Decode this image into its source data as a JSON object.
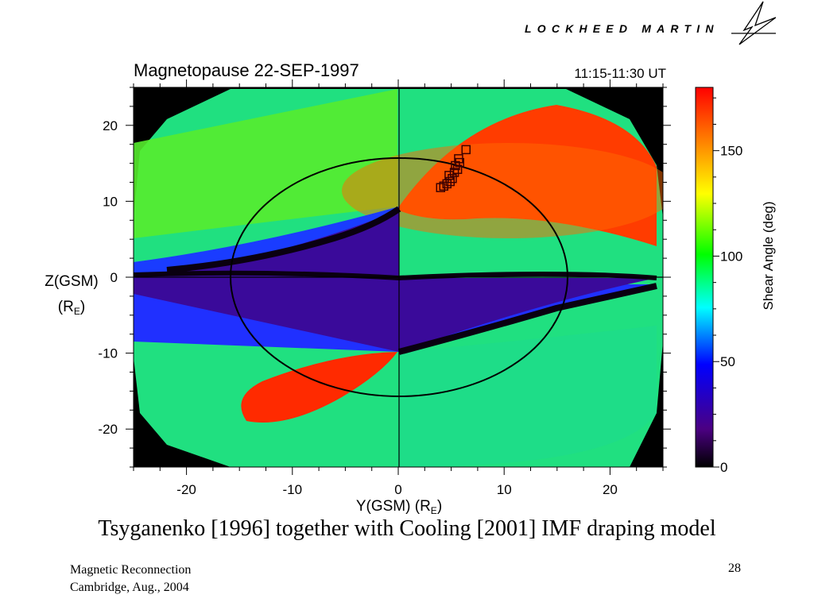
{
  "slide": {
    "logo_text": "LOCKHEED MARTIN",
    "caption": "Tsyganenko [1996] together with Cooling [2001] IMF draping model",
    "footer_left_line1": "Magnetic Reconnection",
    "footer_left_line2": "Cambridge, Aug., 2004",
    "page_number": "28"
  },
  "chart_data": {
    "type": "heatmap",
    "title": "Magnetopause 22-SEP-1997",
    "subtitle": "11:15-11:30 UT",
    "xlabel": "Y(GSM) (R",
    "xlabel_sub": "E",
    "xlabel_suffix": ")",
    "ylabel_line1": "Z(GSM)",
    "ylabel_line2": "(R",
    "ylabel_sub": "E",
    "ylabel_suffix": ")",
    "xlim": [
      -25,
      25
    ],
    "ylim": [
      -25,
      25
    ],
    "xticks": [
      -20,
      -10,
      0,
      10,
      20
    ],
    "yticks": [
      20,
      10,
      0,
      -10,
      -20
    ],
    "colorbar": {
      "label": "Shear Angle (deg)",
      "range": [
        0,
        180
      ],
      "ticks": [
        0,
        50,
        100,
        150
      ],
      "colormap": [
        "#000000",
        "#4b0082",
        "#0000ff",
        "#00ffff",
        "#00ff00",
        "#ffff00",
        "#ff0000"
      ]
    },
    "circle_radius_re": 15.8,
    "markers": [
      {
        "y": 4.0,
        "z": 11.8
      },
      {
        "y": 4.3,
        "z": 12.0
      },
      {
        "y": 4.6,
        "z": 12.3
      },
      {
        "y": 4.9,
        "z": 12.6
      },
      {
        "y": 5.1,
        "z": 13.0
      },
      {
        "y": 4.8,
        "z": 13.4
      },
      {
        "y": 5.3,
        "z": 13.8
      },
      {
        "y": 5.6,
        "z": 14.2
      },
      {
        "y": 5.4,
        "z": 14.7
      },
      {
        "y": 5.8,
        "z": 15.1
      },
      {
        "y": 5.7,
        "z": 15.6
      },
      {
        "y": 6.4,
        "z": 16.8
      }
    ]
  }
}
